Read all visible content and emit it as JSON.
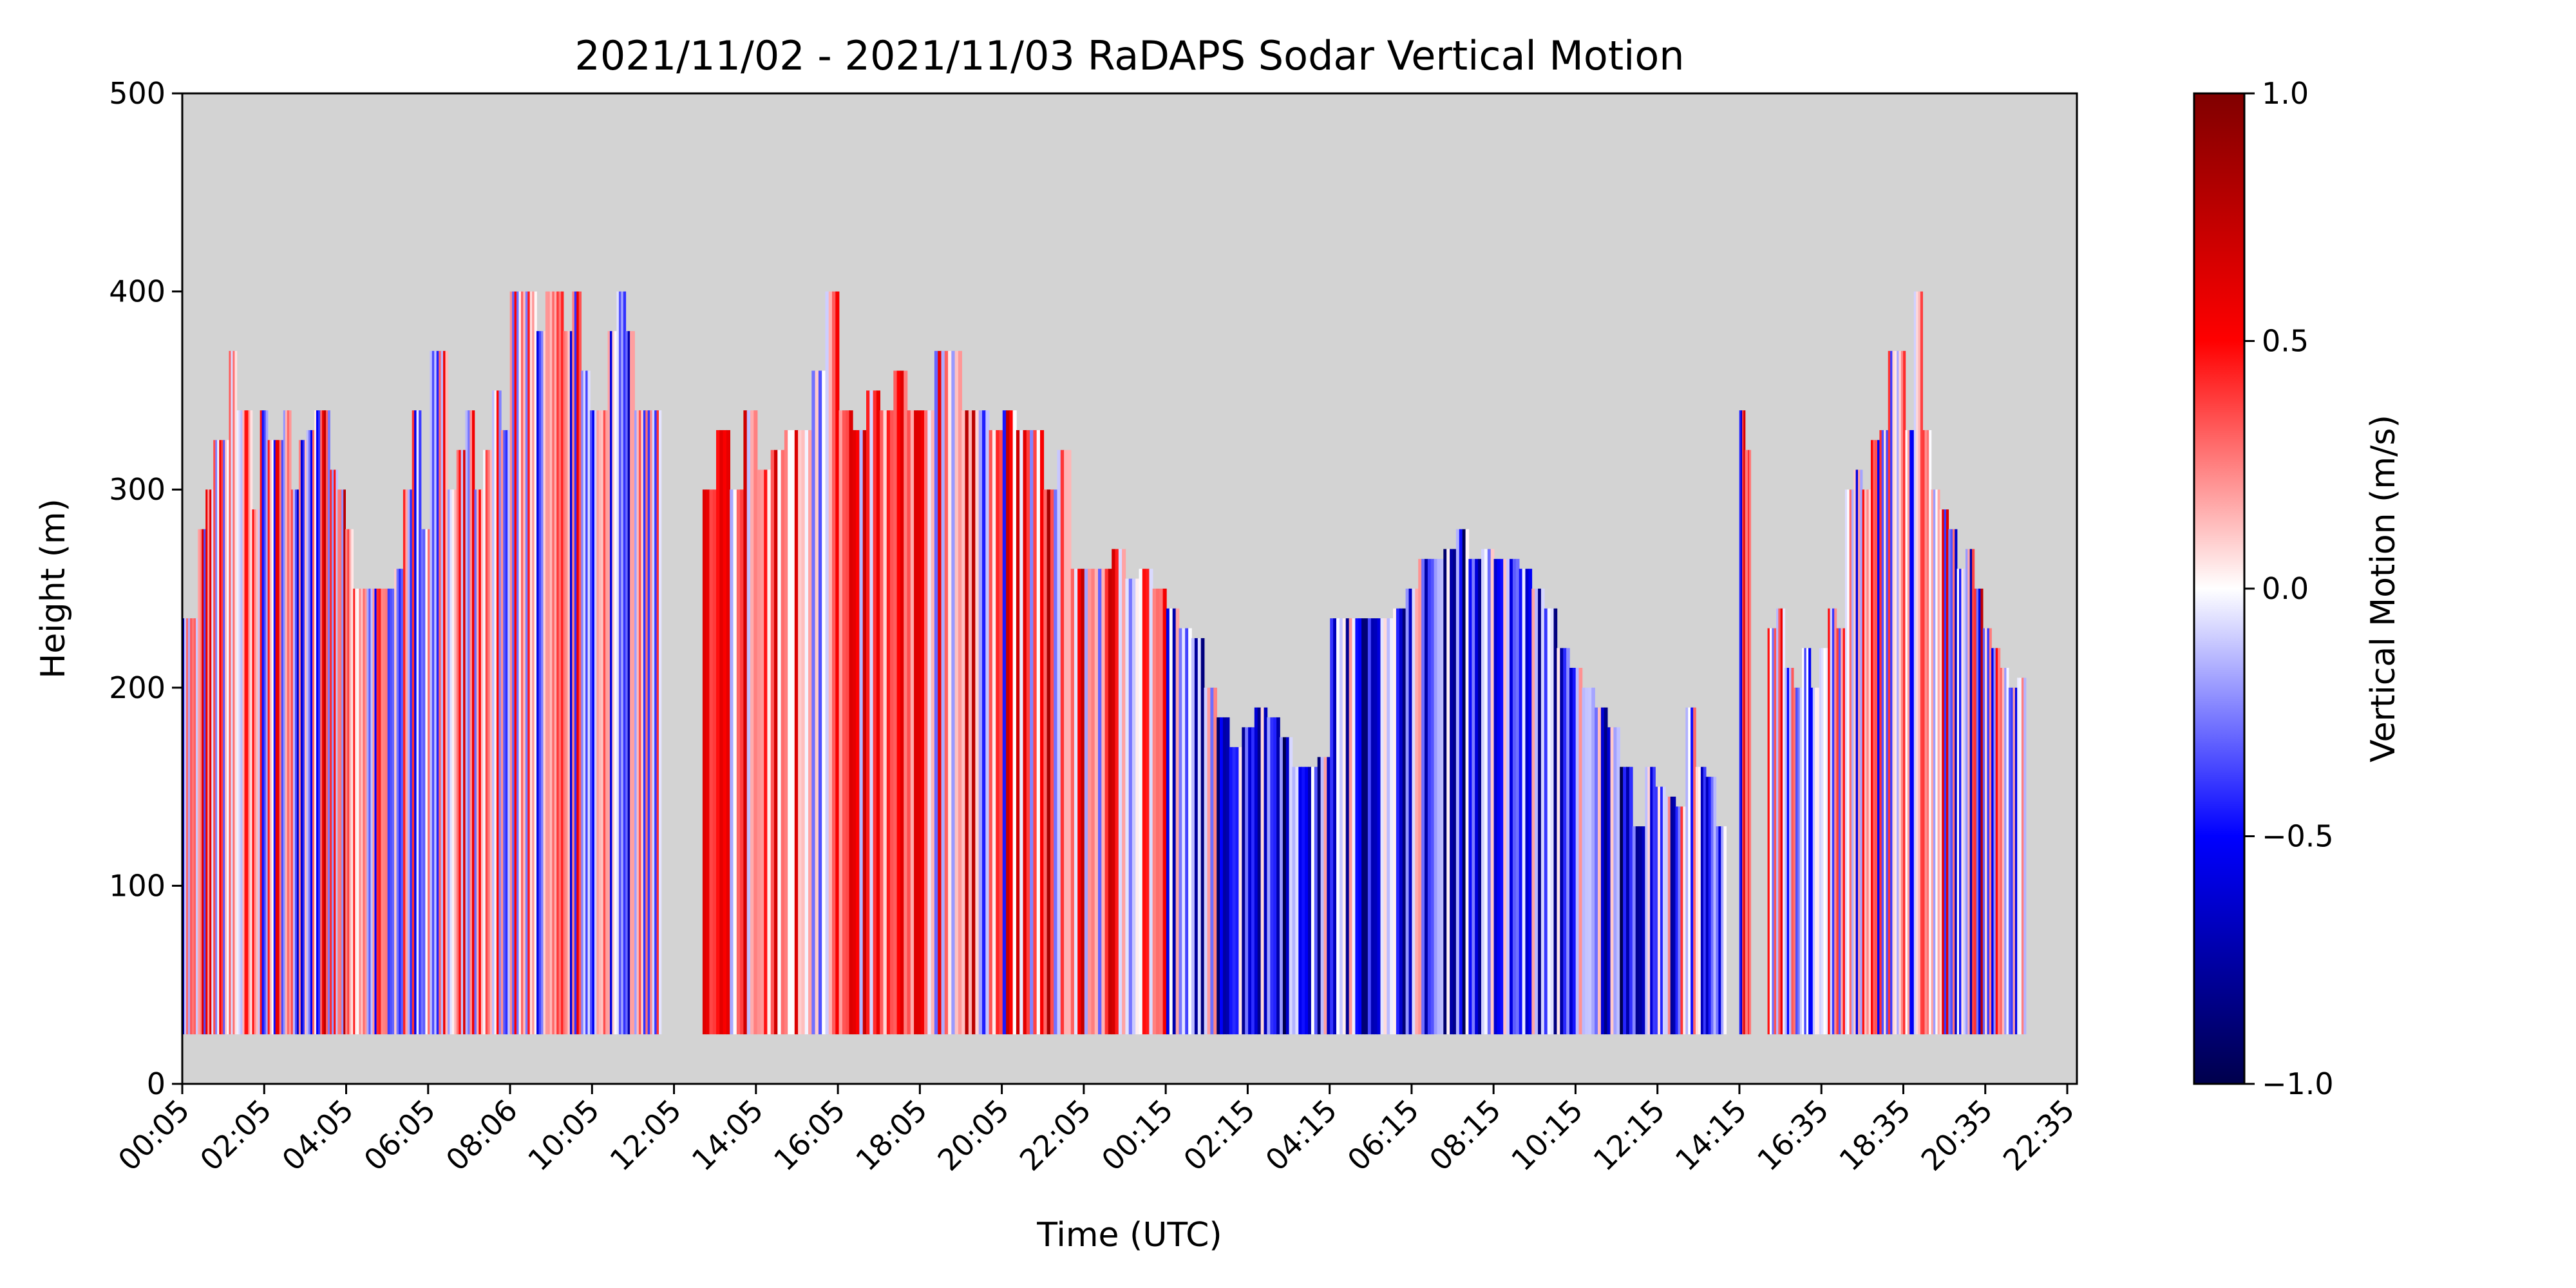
{
  "chart_data": {
    "type": "heatmap",
    "title": "2021/11/02 - 2021/11/03 RaDAPS Sodar Vertical Motion",
    "xlabel": "Time (UTC)",
    "ylabel": "Height (m)",
    "ylim": [
      0,
      500
    ],
    "y_ticks": [
      0,
      100,
      200,
      300,
      400,
      500
    ],
    "x_ticks": [
      "00:05",
      "02:05",
      "04:05",
      "06:05",
      "08:06",
      "10:05",
      "12:05",
      "14:05",
      "16:05",
      "18:05",
      "20:05",
      "22:05",
      "00:15",
      "02:15",
      "04:15",
      "06:15",
      "08:15",
      "10:15",
      "12:15",
      "14:15",
      "16:35",
      "18:35",
      "20:35",
      "22:35"
    ],
    "colorbar": {
      "label": "Vertical Motion (m/s)",
      "range": [
        -1.0,
        1.0
      ],
      "ticks": [
        "1.0",
        "0.5",
        "0.0",
        "−0.5",
        "−1.0"
      ],
      "tick_values": [
        1.0,
        0.5,
        0.0,
        -0.5,
        -1.0
      ],
      "colormap": "seismic"
    },
    "background_color": "#d3d3d3",
    "data_floor_m": 25,
    "tops": [
      [
        235,
        235,
        280,
        300,
        325,
        325,
        370,
        340,
        340,
        290,
        340,
        325,
        325,
        340,
        300,
        325,
        330,
        340,
        340,
        310,
        300,
        280,
        250,
        250,
        250
      ],
      [
        250,
        250,
        260,
        300,
        340,
        280,
        370,
        370,
        300,
        320,
        340,
        300,
        320,
        350,
        330,
        400,
        400,
        400,
        380,
        400,
        400,
        380,
        400,
        360,
        340,
        340,
        380,
        400,
        380,
        340,
        340,
        340
      ],
      [
        300,
        330,
        300,
        340,
        310,
        320,
        330,
        330,
        360,
        400,
        340,
        330,
        350,
        340,
        360,
        340,
        340,
        370,
        370,
        340,
        340,
        330,
        340,
        330,
        330,
        300,
        320,
        260,
        260,
        260,
        270,
        255,
        260,
        250
      ],
      [
        240,
        230,
        225,
        200,
        185,
        170,
        180,
        190,
        185,
        175,
        160,
        160,
        165,
        235,
        235,
        235,
        235,
        235,
        240,
        250,
        265,
        265,
        270,
        280,
        265,
        270,
        265,
        265,
        260,
        250,
        240,
        220,
        210,
        200,
        190,
        180,
        160,
        130
      ],
      [
        160,
        150,
        145,
        140,
        190,
        160,
        155,
        130
      ],
      [
        340,
        320
      ],
      [
        230,
        240,
        210,
        200,
        220,
        200,
        220,
        240,
        230,
        300,
        310,
        300,
        325,
        330,
        370,
        370,
        330,
        400,
        330,
        300,
        290,
        280,
        260,
        270,
        250,
        230,
        220,
        210,
        200,
        205
      ]
    ]
  }
}
